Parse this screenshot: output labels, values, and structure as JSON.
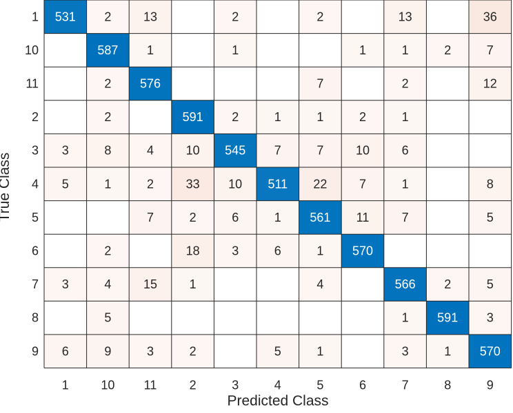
{
  "chart_data": {
    "type": "heatmap",
    "title": "",
    "xlabel": "Predicted Class",
    "ylabel": "True Class",
    "classes": [
      "1",
      "10",
      "11",
      "2",
      "3",
      "4",
      "5",
      "6",
      "7",
      "8",
      "9"
    ],
    "matrix": [
      [
        531,
        2,
        13,
        0,
        2,
        0,
        2,
        0,
        13,
        0,
        36
      ],
      [
        0,
        587,
        1,
        0,
        1,
        0,
        0,
        1,
        1,
        2,
        7
      ],
      [
        0,
        2,
        576,
        0,
        0,
        0,
        7,
        0,
        2,
        0,
        12
      ],
      [
        0,
        2,
        0,
        591,
        2,
        1,
        1,
        2,
        1,
        0,
        0
      ],
      [
        3,
        8,
        4,
        10,
        545,
        7,
        7,
        10,
        6,
        0,
        0
      ],
      [
        5,
        1,
        2,
        33,
        10,
        511,
        22,
        7,
        1,
        0,
        8
      ],
      [
        0,
        0,
        7,
        2,
        6,
        1,
        561,
        11,
        7,
        0,
        5
      ],
      [
        0,
        2,
        0,
        18,
        3,
        6,
        1,
        570,
        0,
        0,
        0
      ],
      [
        3,
        4,
        15,
        1,
        0,
        0,
        4,
        0,
        566,
        2,
        5
      ],
      [
        0,
        5,
        0,
        0,
        0,
        0,
        0,
        0,
        1,
        591,
        3
      ],
      [
        6,
        9,
        3,
        2,
        0,
        5,
        1,
        0,
        3,
        1,
        570
      ]
    ],
    "colors": {
      "diagonal_high": "#0072BD",
      "diagonal_low": "#FFFFFF",
      "offdiag_high": "#D95319",
      "grid": "#262626",
      "text_dark": "#262626",
      "text_light": "#FFFFFF"
    },
    "grid": true,
    "legend": "none"
  }
}
